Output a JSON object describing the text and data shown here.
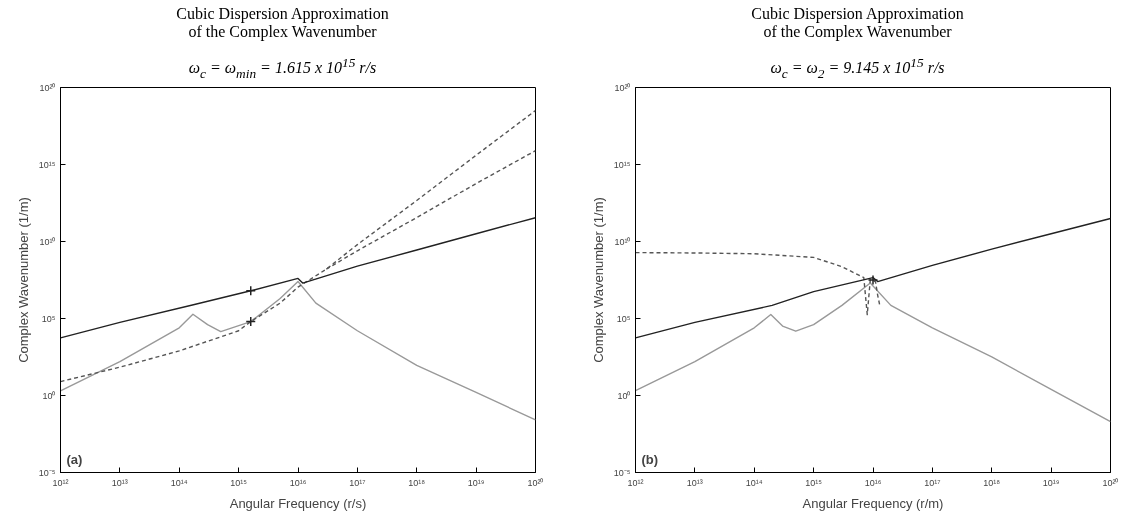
{
  "chart_data": [
    {
      "type": "line",
      "title": "Cubic Dispersion Approximation\nof the Complex Wavenumber",
      "subtitle": "ω$_{c}$ = ω$_{min}$ = 1.615 x 10$^{15}$ r/s",
      "xlabel": "Angular Frequency (r/s)",
      "ylabel": "Complex Wavenumber (1/m)",
      "log": "xy",
      "grid": false,
      "annotations": [
        "(a)"
      ],
      "xlim": [
        1000000000000.0,
        1e+20
      ],
      "ylim": [
        1e-05,
        1e+20
      ],
      "xticks": [
        {
          "value": 1000000000000.0,
          "label": "10¹²"
        },
        {
          "value": 10000000000000.0,
          "label": "10¹³"
        },
        {
          "value": 100000000000000.0,
          "label": "10¹⁴"
        },
        {
          "value": 1000000000000000.0,
          "label": "10¹⁵"
        },
        {
          "value": 1e+16,
          "label": "10¹⁶"
        },
        {
          "value": 1e+17,
          "label": "10¹⁷"
        },
        {
          "value": 1e+18,
          "label": "10¹⁸"
        },
        {
          "value": 1e+19,
          "label": "10¹⁹"
        },
        {
          "value": 1e+20,
          "label": "10²⁰"
        }
      ],
      "yticks": [
        {
          "value": 1e-05,
          "label": "10⁻⁵"
        },
        {
          "value": 1,
          "label": "10⁰"
        },
        {
          "value": 100000.0,
          "label": "10⁵"
        },
        {
          "value": 10000000000.0,
          "label": "10¹⁰"
        },
        {
          "value": 1000000000000000.0,
          "label": "10¹⁵"
        },
        {
          "value": 1e+20,
          "label": "10²⁰"
        }
      ],
      "series": [
        {
          "line_style": "solid",
          "color": "#999999",
          "x": [
            1000000000000.0,
            10000000000000.0,
            100000000000000.0,
            170000000000000.0,
            300000000000000.0,
            500000000000000.0,
            1600000000000000.0,
            5000000000000000.0,
            1e+16,
            2e+16,
            1e+17,
            1e+18,
            1e+19,
            1e+20
          ],
          "values": [
            2,
            160,
            25000.0,
            190000.0,
            40000.0,
            14000.0,
            63000.0,
            2000000.0,
            25000000.0,
            1000000.0,
            16000.0,
            91,
            1.6,
            0.026
          ]
        },
        {
          "line_style": "dashed",
          "color": "#555555",
          "x": [
            1000000000000.0,
            10000000000000.0,
            100000000000000.0,
            1000000000000000.0,
            1600000000000000.0,
            5000000000000000.0,
            1e+16,
            3e+16,
            1e+17,
            1e+18,
            1e+19,
            1e+20
          ],
          "values": [
            8,
            69,
            790,
            16000.0,
            63000.0,
            1000000.0,
            11000000.0,
            160000000.0,
            6300000000.0,
            4600000000000.0,
            4000000000000000.0,
            3.2e+18
          ]
        },
        {
          "line_style": "dashed",
          "color": "#555555",
          "x": [
            3e+16,
            1e+17,
            1e+18,
            1e+19,
            1e+20
          ],
          "values": [
            160000000.0,
            2500000000.0,
            360000000000.0,
            58000000000000.0,
            7900000000000000.0
          ]
        },
        {
          "line_style": "solid",
          "color": "#222222",
          "x": [
            1000000000000.0,
            10000000000000.0,
            160000000000000.0,
            1600000000000000.0,
            1e+16,
            1.2e+16,
            1e+17,
            1e+18,
            1e+19,
            1e+20
          ],
          "values": [
            5500.0,
            56000.0,
            720000.0,
            6300000.0,
            40000000.0,
            20000000.0,
            250000000.0,
            2800000000.0,
            32000000000.0,
            350000000000.0
          ]
        },
        {
          "type": "scatter",
          "marker": "cross",
          "color": "#222222",
          "x": [
            1600000000000000.0,
            1600000000000000.0
          ],
          "values": [
            6300000.0,
            63000.0
          ]
        }
      ]
    },
    {
      "type": "line",
      "title": "Cubic Dispersion Approximation\nof the Complex Wavenumber",
      "subtitle": "ω$_{c}$ = ω$_{2}$ = 9.145 x 10$^{15}$ r/s",
      "xlabel": "Angular Frequency (r/m)",
      "ylabel": "Complex Wavenumber (1/m)",
      "log": "xy",
      "grid": false,
      "annotations": [
        "(b)"
      ],
      "xlim": [
        1000000000000.0,
        1e+20
      ],
      "ylim": [
        1e-05,
        1e+20
      ],
      "xticks": [
        {
          "value": 1000000000000.0,
          "label": "10¹²"
        },
        {
          "value": 10000000000000.0,
          "label": "10¹³"
        },
        {
          "value": 100000000000000.0,
          "label": "10¹⁴"
        },
        {
          "value": 1000000000000000.0,
          "label": "10¹⁵"
        },
        {
          "value": 1e+16,
          "label": "10¹⁶"
        },
        {
          "value": 1e+17,
          "label": "10¹⁷"
        },
        {
          "value": 1e+18,
          "label": "10¹⁸"
        },
        {
          "value": 1e+19,
          "label": "10¹⁹"
        },
        {
          "value": 1e+20,
          "label": "10²⁰"
        }
      ],
      "yticks": [
        {
          "value": 1e-05,
          "label": "10⁻⁵"
        },
        {
          "value": 1,
          "label": "10⁰"
        },
        {
          "value": 100000.0,
          "label": "10⁵"
        },
        {
          "value": 10000000000.0,
          "label": "10¹⁰"
        },
        {
          "value": 1000000000000000.0,
          "label": "10¹⁵"
        },
        {
          "value": 1e+20,
          "label": "10²⁰"
        }
      ],
      "series": [
        {
          "line_style": "solid",
          "color": "#999999",
          "x": [
            1000000000000.0,
            10000000000000.0,
            100000000000000.0,
            190000000000000.0,
            300000000000000.0,
            500000000000000.0,
            1000000000000000.0,
            3000000000000000.0,
            9000000000000000.0,
            2e+16,
            1e+17,
            1e+18,
            1e+19,
            1e+20
          ],
          "values": [
            2.1,
            160,
            25000.0,
            180000.0,
            32000.0,
            15000.0,
            40000.0,
            710000.0,
            20000000.0,
            710000.0,
            25000.0,
            320,
            2.5,
            0.02
          ]
        },
        {
          "line_style": "dashed",
          "color": "#555555",
          "x": [
            1000000000000.0,
            10000000000000.0,
            100000000000000.0,
            1000000000000000.0,
            3000000000000000.0,
            7000000000000000.0,
            8000000000000000.0,
            9000000000000000.0,
            1.1e+16,
            1.2e+16,
            1.3e+16
          ],
          "values": [
            1900000000.0,
            1800000000.0,
            1600000000.0,
            930000000.0,
            230000000.0,
            45000000.0,
            180000.0,
            32000000.0,
            25000000.0,
            3200000.0,
            710000.0
          ]
        },
        {
          "line_style": "solid",
          "color": "#222222",
          "x": [
            1000000000000.0,
            10000000000000.0,
            200000000000000.0,
            1000000000000000.0,
            1e+16,
            1.2e+16,
            1e+17,
            1e+18,
            1e+19,
            1e+20
          ],
          "values": [
            5500.0,
            56000.0,
            710000.0,
            5600000.0,
            45000000.0,
            25000000.0,
            280000000.0,
            3200000000.0,
            32000000000.0,
            310000000000.0
          ]
        },
        {
          "type": "scatter",
          "marker": "cross",
          "color": "#222222",
          "x": [
            1e+16
          ],
          "values": [
            32000000.0
          ]
        }
      ]
    }
  ]
}
